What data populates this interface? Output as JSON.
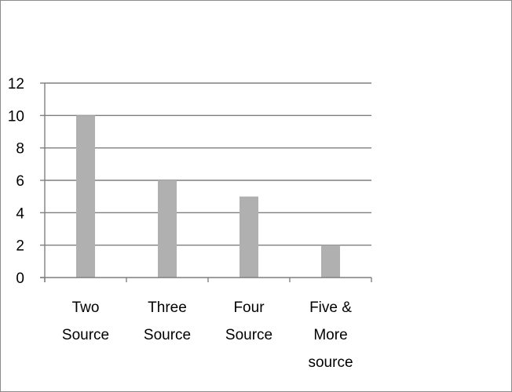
{
  "chart_data": {
    "type": "bar",
    "categories": [
      [
        "Two",
        "Source"
      ],
      [
        "Three",
        "Source"
      ],
      [
        "Four",
        "Source"
      ],
      [
        "Five &",
        "More",
        "source"
      ]
    ],
    "values": [
      10,
      6,
      5,
      2
    ],
    "ylim": [
      0,
      12
    ],
    "yticks": [
      "0",
      "2",
      "4",
      "6",
      "8",
      "10",
      "12"
    ],
    "grid": true,
    "legend": "none",
    "bar_color": "#b0b0b0",
    "grid_color": "#7f7f7f"
  }
}
